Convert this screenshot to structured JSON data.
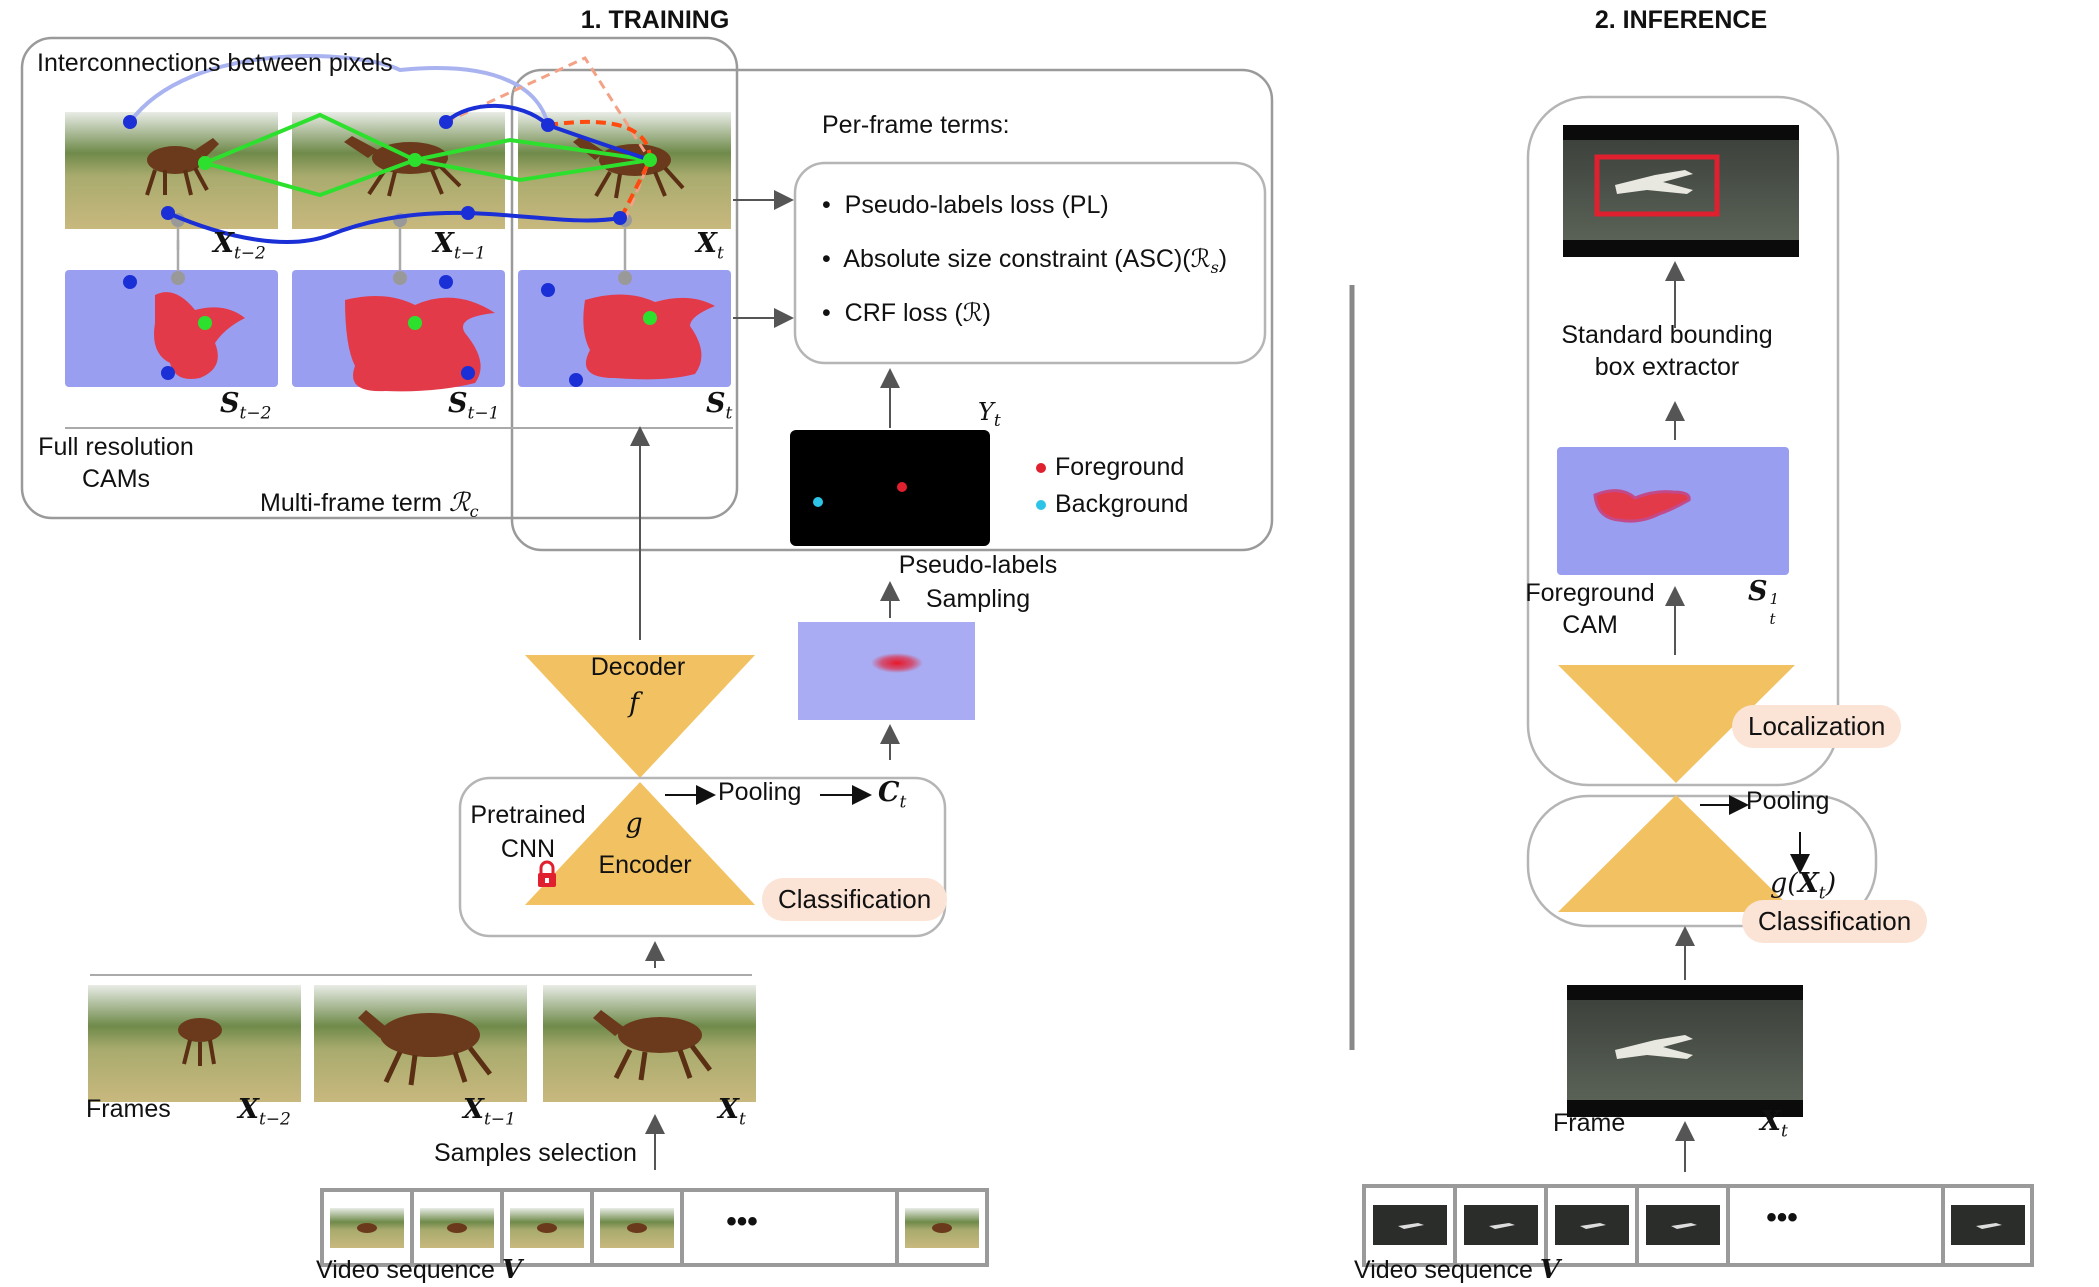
{
  "training": {
    "title": "1. TRAINING",
    "interconnections_label": "Interconnections between pixels",
    "frame_labels": [
      "X",
      "X",
      "X"
    ],
    "frame_subs": [
      "t−2",
      "t−1",
      "t"
    ],
    "cam_labels": [
      "S",
      "S",
      "S"
    ],
    "cam_subs": [
      "t−2",
      "t−1",
      "t"
    ],
    "full_res_label_1": "Full resolution",
    "full_res_label_2": "CAMs",
    "multiframe_label": "Multi-frame term ",
    "multiframe_symbol": "ℛ",
    "multiframe_sub": "c",
    "per_frame_title": "Per-frame terms:",
    "terms": [
      "Pseudo-labels loss (PL)",
      "Absolute size constraint (ASC)(ℛ",
      "CRF loss (ℛ)"
    ],
    "term_asc_sub": "s",
    "term_asc_end": ")",
    "yt_label": "Y",
    "yt_sub": "t",
    "legend_fg": "Foreground",
    "legend_bg": "Background",
    "pseudo_sampling_1": "Pseudo-labels",
    "pseudo_sampling_2": "Sampling",
    "decoder_label": "Decoder",
    "decoder_symbol": "f",
    "encoder_symbol": "g",
    "encoder_label": "Encoder",
    "pretrained_1": "Pretrained",
    "pretrained_2": "CNN",
    "pooling_label": "Pooling",
    "ct_label": "C",
    "ct_sub": "t",
    "classification_label": "Classification",
    "frames_label": "Frames",
    "bottom_frame_labels": [
      "X",
      "X",
      "X"
    ],
    "bottom_frame_subs": [
      "t−2",
      "t−1",
      "t"
    ],
    "samples_selection": "Samples selection",
    "ellipsis": "•••",
    "video_label": "Video sequence ",
    "video_symbol": "V"
  },
  "inference": {
    "title": "2. INFERENCE",
    "bbox_label_1": "Standard bounding",
    "bbox_label_2": "box extractor",
    "fg_cam_1": "Foreground",
    "fg_cam_2": "CAM",
    "s_label": "S",
    "s_sup": "1",
    "s_sub": "t",
    "localization_label": "Localization",
    "pooling_label": "Pooling",
    "g_label": "g(",
    "g_x": "X",
    "g_sub": "t",
    "g_end": ")",
    "classification_label": "Classification",
    "frame_label": "Frame",
    "x_label": "X",
    "x_sub": "t",
    "ellipsis": "•••",
    "video_label": "Video sequence ",
    "video_symbol": "V"
  },
  "colors": {
    "cam_blue": "#9a9ef0",
    "cnn_orange": "#f2c262",
    "fg_red": "#e0202e",
    "bg_cyan": "#2ec4e8",
    "pill": "#fbe3d6",
    "green_link": "#2ee02e",
    "blue_link": "#1a2fd6"
  }
}
